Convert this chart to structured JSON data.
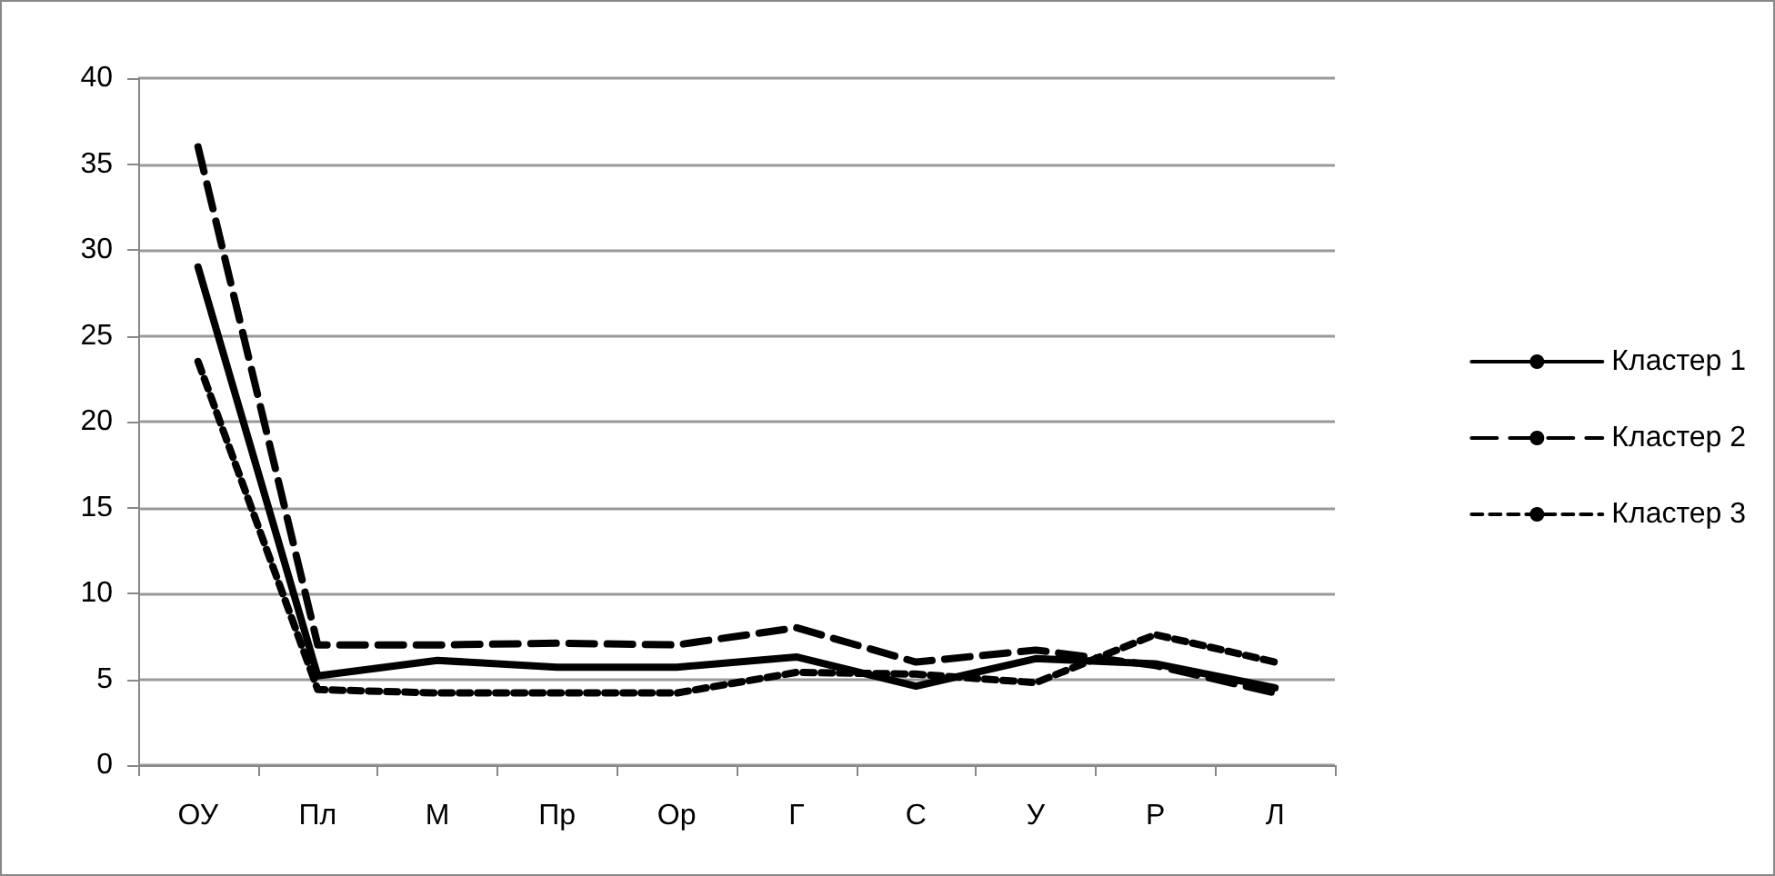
{
  "chart_data": {
    "type": "line",
    "categories": [
      "ОУ",
      "Пл",
      "М",
      "Пр",
      "Ор",
      "Г",
      "С",
      "У",
      "Р",
      "Л"
    ],
    "series": [
      {
        "name": "Кластер 1",
        "color": "#000000",
        "line_style": "solid",
        "values": [
          29,
          5.2,
          6.1,
          5.7,
          5.7,
          6.3,
          4.6,
          6.2,
          5.9,
          4.5
        ]
      },
      {
        "name": "Кластер 2",
        "color": "#000000",
        "line_style": "dashed",
        "values": [
          36,
          7,
          7,
          7.1,
          7,
          8,
          6,
          6.7,
          5.8,
          4.2
        ]
      },
      {
        "name": "Кластер 3",
        "color": "#000000",
        "line_style": "dotted",
        "values": [
          23.5,
          4.4,
          4.2,
          4.2,
          4.2,
          5.4,
          5.3,
          4.8,
          7.6,
          6
        ]
      }
    ],
    "ylim": [
      0,
      40
    ],
    "yticks": [
      0,
      5,
      10,
      15,
      20,
      25,
      30,
      35,
      40
    ],
    "grid": "y",
    "legend": "right",
    "marker": "none"
  }
}
